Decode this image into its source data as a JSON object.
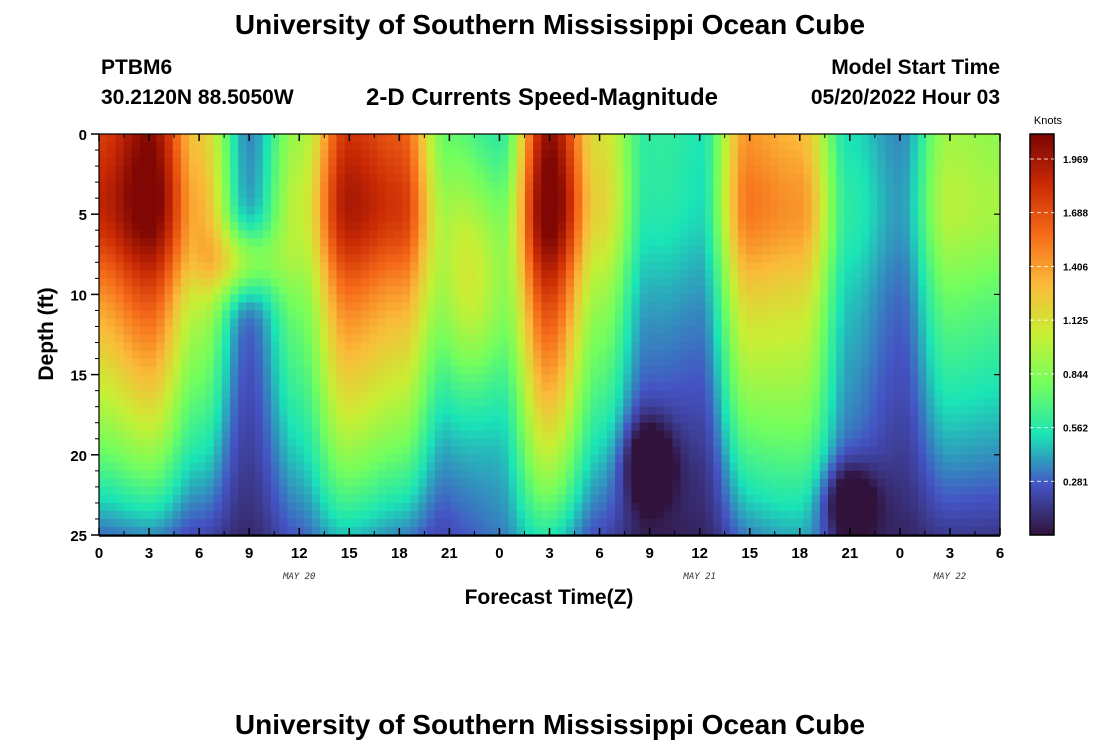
{
  "header": {
    "title": "University of Southern Mississippi Ocean Cube",
    "station": "PTBM6",
    "coordinates": "30.2120N  88.5050W",
    "subtitle": "2-D Currents Speed-Magnitude",
    "start_label": "Model Start Time",
    "start_value": "05/20/2022 Hour 03"
  },
  "footer": {
    "title": "University of Southern Mississippi Ocean Cube"
  },
  "chart_data": {
    "type": "heatmap",
    "title": "2-D Currents Speed-Magnitude",
    "xlabel": "Forecast Time(Z)",
    "ylabel": "Depth (ft)",
    "x_tick_labels": [
      "0",
      "3",
      "6",
      "9",
      "12",
      "15",
      "18",
      "21",
      "0",
      "3",
      "6",
      "9",
      "12",
      "15",
      "18",
      "21",
      "0",
      "3",
      "6"
    ],
    "x_range_hours": [
      0,
      54
    ],
    "date_labels": [
      {
        "text": "MAY 20",
        "hour": 12
      },
      {
        "text": "MAY 21",
        "hour": 36
      },
      {
        "text": "MAY 22",
        "hour": 51
      }
    ],
    "y_ticks": [
      0,
      5,
      10,
      15,
      20,
      25
    ],
    "ylim": [
      25,
      0
    ],
    "colorbar": {
      "label": "Knots",
      "ticks": [
        "1.969",
        "1.688",
        "1.406",
        "1.125",
        "0.844",
        "0.562",
        "0.281"
      ],
      "range": [
        0,
        2.1
      ]
    },
    "colormap": [
      "#30123b",
      "#4454c4",
      "#1ae4b6",
      "#72fe5e",
      "#c8ef34",
      "#faba39",
      "#f66b19",
      "#ca2a04",
      "#7a0403"
    ],
    "grid": false,
    "surface_speed_profile": [
      {
        "hour": 0,
        "knots": 1.7
      },
      {
        "hour": 3,
        "knots": 2.0
      },
      {
        "hour": 6,
        "knots": 1.2
      },
      {
        "hour": 9,
        "knots": 0.35
      },
      {
        "hour": 12,
        "knots": 0.9
      },
      {
        "hour": 15,
        "knots": 1.75
      },
      {
        "hour": 18,
        "knots": 1.6
      },
      {
        "hour": 21,
        "knots": 0.7
      },
      {
        "hour": 24,
        "knots": 0.55
      },
      {
        "hour": 27,
        "knots": 1.95
      },
      {
        "hour": 30,
        "knots": 1.0
      },
      {
        "hour": 33,
        "knots": 0.35
      },
      {
        "hour": 36,
        "knots": 0.3
      },
      {
        "hour": 39,
        "knots": 1.3
      },
      {
        "hour": 42,
        "knots": 1.25
      },
      {
        "hour": 45,
        "knots": 0.5
      },
      {
        "hour": 48,
        "knots": 0.35
      },
      {
        "hour": 51,
        "knots": 0.9
      },
      {
        "hour": 54,
        "knots": 0.85
      }
    ]
  }
}
